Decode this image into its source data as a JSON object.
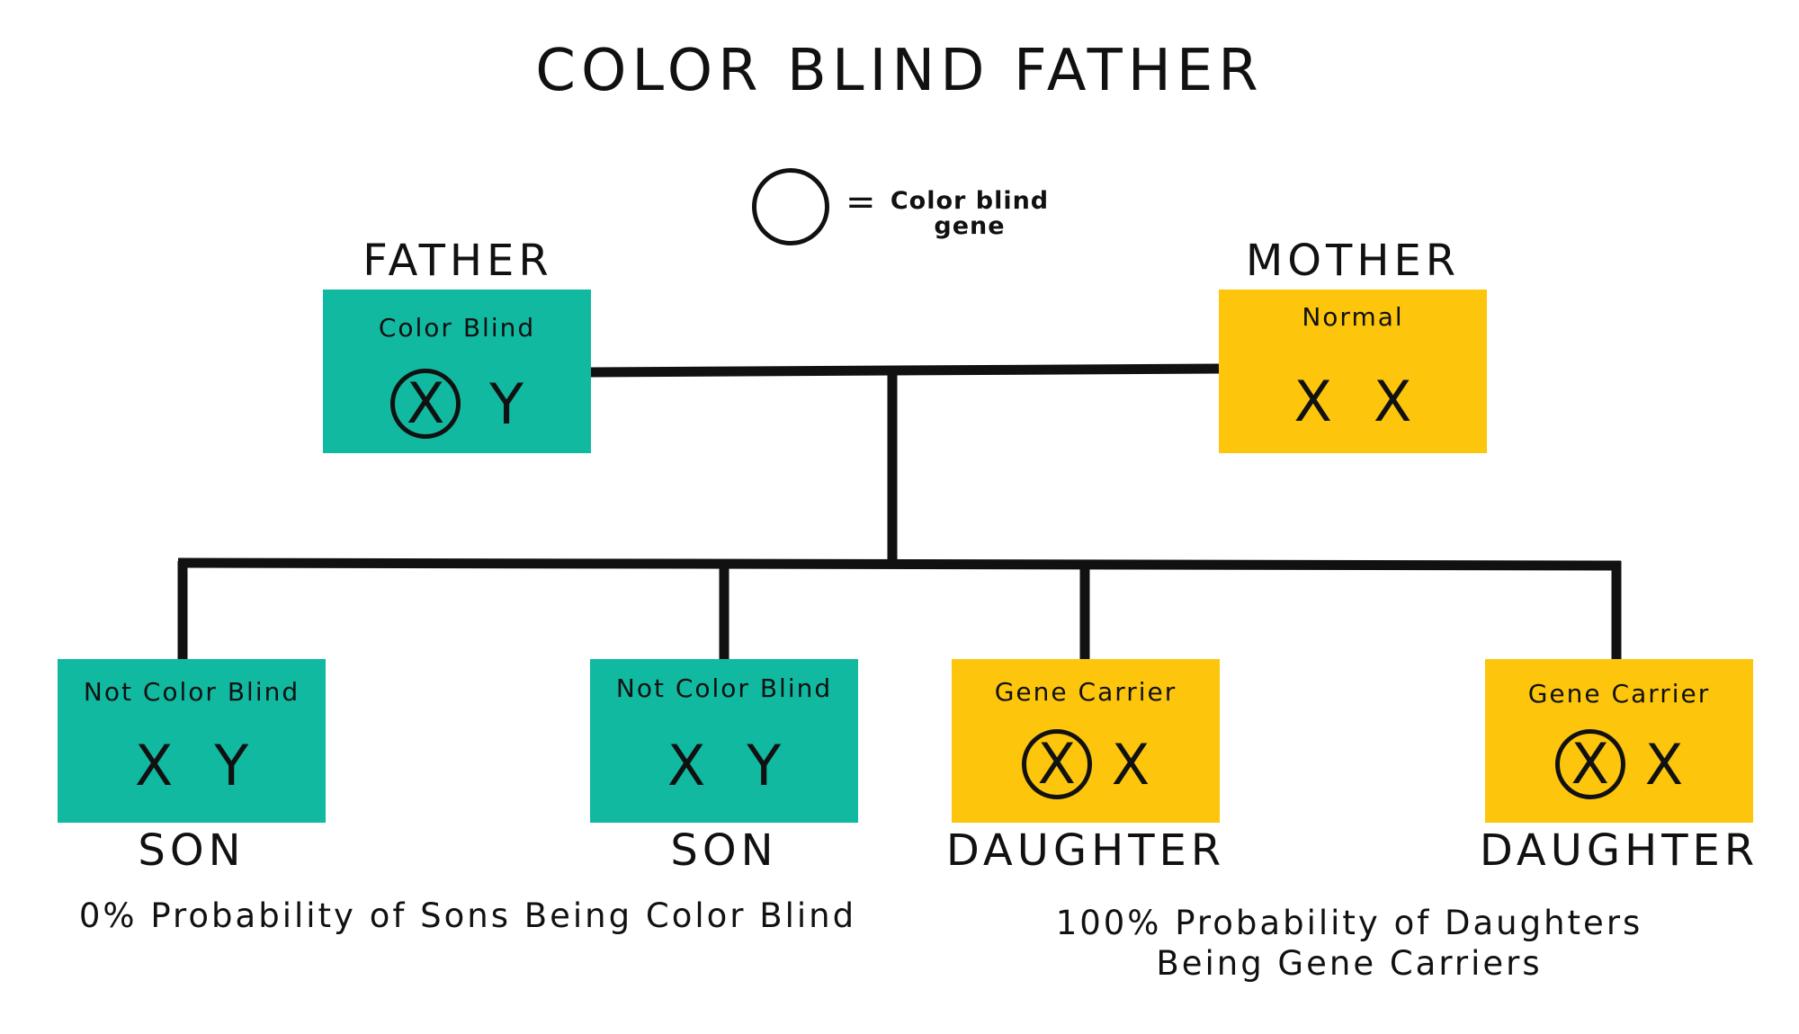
{
  "title": "COLOR BLIND FATHER",
  "legend": {
    "symbol": "=",
    "text_line1": "Color blind",
    "text_line2": "gene"
  },
  "parents": [
    {
      "role": "FATHER",
      "status": "Color Blind",
      "gene1": "X",
      "gene1_marked": true,
      "gene2": "Y",
      "color": "#11b9a1"
    },
    {
      "role": "MOTHER",
      "status": "Normal",
      "gene1": "X",
      "gene1_marked": false,
      "gene2": "X",
      "color": "#fdc50c"
    }
  ],
  "children": [
    {
      "role": "SON",
      "status": "Not Color Blind",
      "gene1": "X",
      "gene1_marked": false,
      "gene2": "Y",
      "color": "#11b9a1"
    },
    {
      "role": "SON",
      "status": "Not Color Blind",
      "gene1": "X",
      "gene1_marked": false,
      "gene2": "Y",
      "color": "#11b9a1"
    },
    {
      "role": "DAUGHTER",
      "status": "Gene Carrier",
      "gene1": "X",
      "gene1_marked": true,
      "gene2": "X",
      "color": "#fdc50c"
    },
    {
      "role": "DAUGHTER",
      "status": "Gene Carrier",
      "gene1": "X",
      "gene1_marked": true,
      "gene2": "X",
      "color": "#fdc50c"
    }
  ],
  "captions": {
    "sons": "0% Probability of Sons Being Color Blind",
    "daughters_line1": "100% Probability of Daughters",
    "daughters_line2": "Being Gene Carriers"
  }
}
